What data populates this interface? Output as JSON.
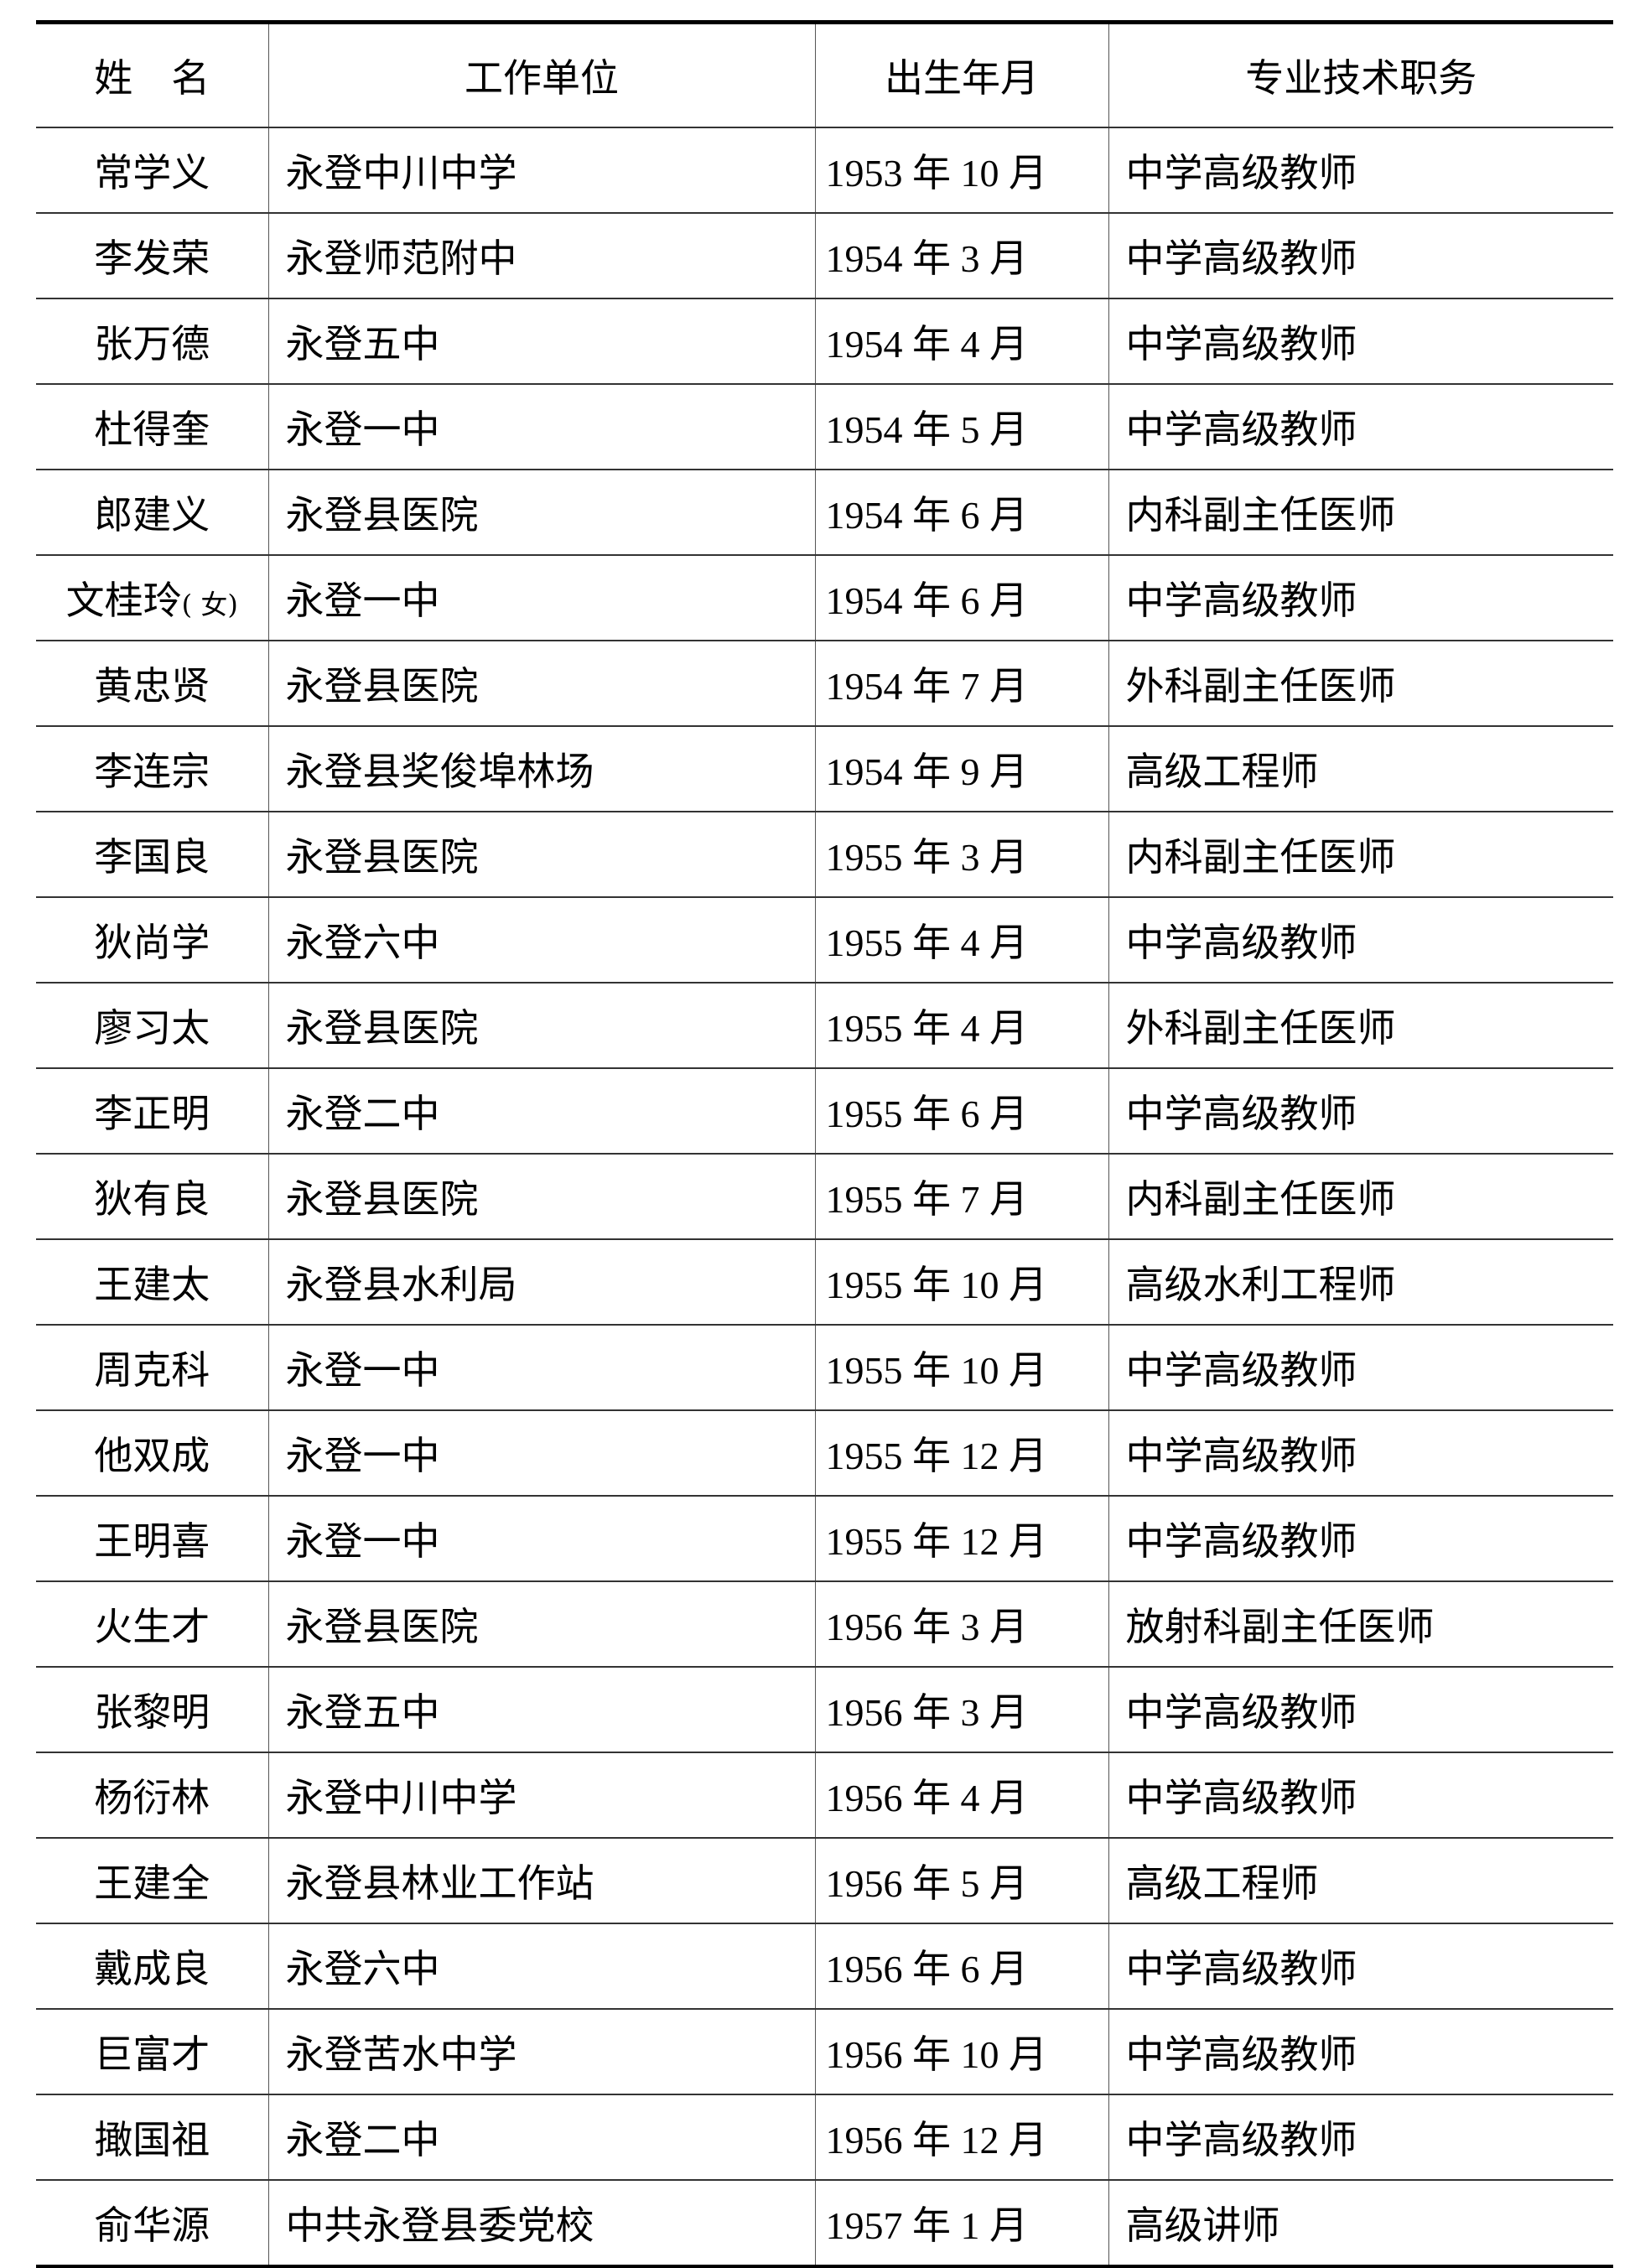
{
  "table": {
    "headers": [
      "姓　名",
      "工作单位",
      "出生年月",
      "专业技术职务"
    ],
    "rows": [
      {
        "name": "常学义",
        "unit": "永登中川中学",
        "birth": "1953 年 10 月",
        "title": "中学高级教师"
      },
      {
        "name": "李发荣",
        "unit": "永登师范附中",
        "birth": "1954 年 3 月",
        "title": "中学高级教师"
      },
      {
        "name": "张万德",
        "unit": "永登五中",
        "birth": "1954 年 4 月",
        "title": "中学高级教师"
      },
      {
        "name": "杜得奎",
        "unit": "永登一中",
        "birth": "1954 年 5 月",
        "title": "中学高级教师"
      },
      {
        "name": "郎建义",
        "unit": "永登县医院",
        "birth": "1954 年 6 月",
        "title": "内科副主任医师"
      },
      {
        "name": "文桂玲",
        "name_note": "( 女)",
        "unit": "永登一中",
        "birth": "1954 年 6 月",
        "title": "中学高级教师"
      },
      {
        "name": "黄忠贤",
        "unit": "永登县医院",
        "birth": "1954 年 7 月",
        "title": "外科副主任医师"
      },
      {
        "name": "李连宗",
        "unit": "永登县奖俊埠林场",
        "birth": "1954 年 9 月",
        "title": "高级工程师"
      },
      {
        "name": "李国良",
        "unit": "永登县医院",
        "birth": "1955 年 3 月",
        "title": "内科副主任医师"
      },
      {
        "name": "狄尚学",
        "unit": "永登六中",
        "birth": "1955 年 4 月",
        "title": "中学高级教师"
      },
      {
        "name": "廖习太",
        "unit": "永登县医院",
        "birth": "1955 年 4 月",
        "title": "外科副主任医师"
      },
      {
        "name": "李正明",
        "unit": "永登二中",
        "birth": "1955 年 6 月",
        "title": "中学高级教师"
      },
      {
        "name": "狄有良",
        "unit": "永登县医院",
        "birth": "1955 年 7 月",
        "title": "内科副主任医师"
      },
      {
        "name": "王建太",
        "unit": "永登县水利局",
        "birth": "1955 年 10 月",
        "title": "高级水利工程师"
      },
      {
        "name": "周克科",
        "unit": "永登一中",
        "birth": "1955 年 10 月",
        "title": "中学高级教师"
      },
      {
        "name": "他双成",
        "unit": "永登一中",
        "birth": "1955 年 12 月",
        "title": "中学高级教师"
      },
      {
        "name": "王明喜",
        "unit": "永登一中",
        "birth": "1955 年 12 月",
        "title": "中学高级教师"
      },
      {
        "name": "火生才",
        "unit": "永登县医院",
        "birth": "1956 年 3 月",
        "title": "放射科副主任医师"
      },
      {
        "name": "张黎明",
        "unit": "永登五中",
        "birth": "1956 年 3 月",
        "title": "中学高级教师"
      },
      {
        "name": "杨衍林",
        "unit": "永登中川中学",
        "birth": "1956 年 4 月",
        "title": "中学高级教师"
      },
      {
        "name": "王建全",
        "unit": "永登县林业工作站",
        "birth": "1956 年 5 月",
        "title": "高级工程师"
      },
      {
        "name": "戴成良",
        "unit": "永登六中",
        "birth": "1956 年 6 月",
        "title": "中学高级教师"
      },
      {
        "name": "巨富才",
        "unit": "永登苦水中学",
        "birth": "1956 年 10 月",
        "title": "中学高级教师"
      },
      {
        "name": "撖国祖",
        "unit": "永登二中",
        "birth": "1956 年 12 月",
        "title": "中学高级教师"
      },
      {
        "name": "俞华源",
        "unit": "中共永登县委党校",
        "birth": "1957 年 1 月",
        "title": "高级讲师"
      }
    ]
  }
}
